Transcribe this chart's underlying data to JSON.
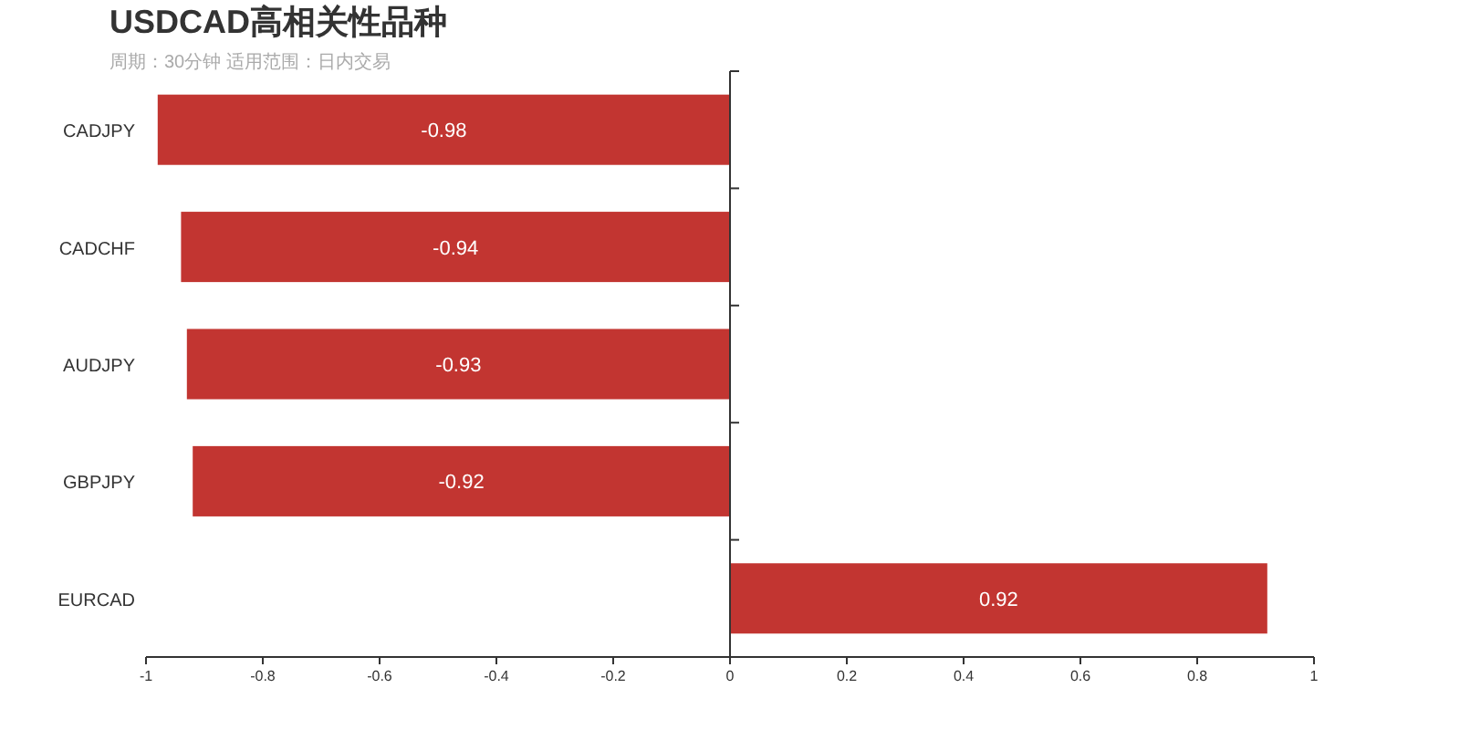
{
  "chart_data": {
    "type": "bar",
    "orientation": "horizontal",
    "title": "USDCAD高相关性品种",
    "subtitle": "周期：30分钟 适用范围：日内交易",
    "categories": [
      "CADJPY",
      "CADCHF",
      "AUDJPY",
      "GBPJPY",
      "EURCAD"
    ],
    "values": [
      -0.98,
      -0.94,
      -0.93,
      -0.92,
      0.92
    ],
    "color": "#c23531",
    "xlim": [
      -1,
      1
    ],
    "xticks": [
      -1,
      -0.8,
      -0.6,
      -0.4,
      -0.2,
      0,
      0.2,
      0.4,
      0.6,
      0.8,
      1
    ],
    "data_labels": true
  }
}
